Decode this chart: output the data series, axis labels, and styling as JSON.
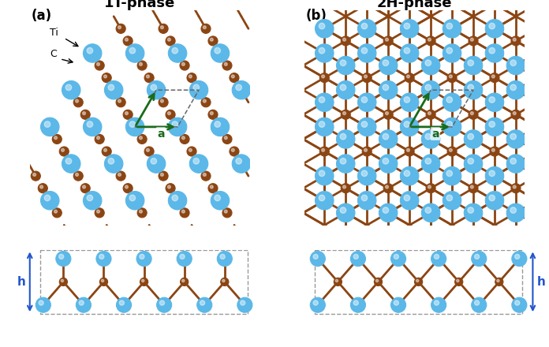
{
  "ti_color": "#5BB8E8",
  "c_color": "#8B4513",
  "bond_color": "#8B4513",
  "arrow_color": "#1a6b1a",
  "h_arrow_color": "#2255CC",
  "dashed_color": "#666666",
  "bg_color": "#ffffff",
  "title_1t": "1T-phase",
  "title_2h": "2H-phase",
  "label_a": "a",
  "label_h": "h",
  "label_ti": "Ti",
  "label_c": "C"
}
